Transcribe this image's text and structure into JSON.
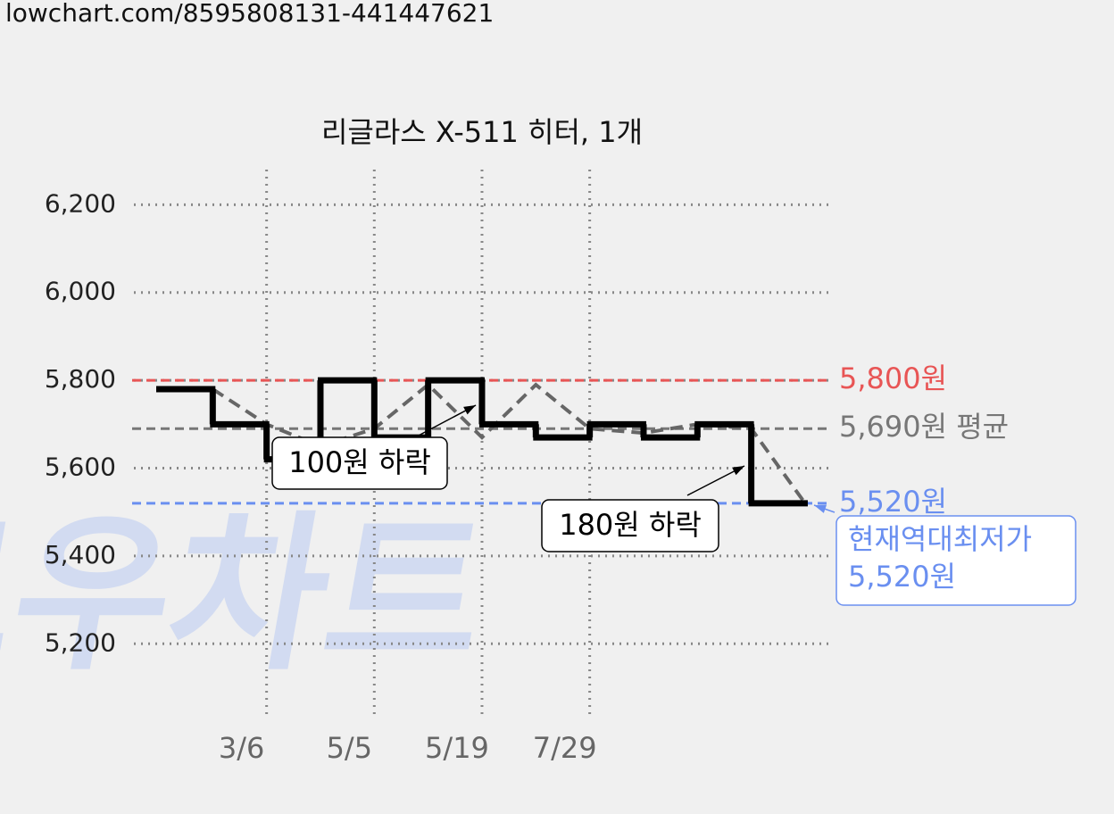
{
  "source": "lowchart.com/8595808131-441447621",
  "watermark": "로우차트",
  "chart_data": {
    "type": "step",
    "title": "리글라스 X-511 히터, 1개",
    "categories": [
      null,
      null,
      "3/6",
      null,
      "5/5",
      null,
      "5/19",
      null,
      "7/29",
      null,
      null,
      null
    ],
    "series": [
      {
        "color": "#000000",
        "values": [
          5780,
          5700,
          5620,
          5800,
          5670,
          5800,
          5700,
          5670,
          5700,
          5670,
          5700,
          5520
        ]
      },
      {
        "color": "#666666",
        "values": [
          5780,
          5700,
          5650,
          5690,
          5790,
          5670,
          5790,
          5690,
          5680,
          5700,
          5690,
          5520
        ]
      }
    ],
    "ylim": [
      5040,
      6280
    ],
    "yticks": [
      {
        "value": 5200,
        "label": "5,200"
      },
      {
        "value": 5400,
        "label": "5,400"
      },
      {
        "value": 5600,
        "label": "5,600"
      },
      {
        "value": 5800,
        "label": "5,800"
      },
      {
        "value": 6000,
        "label": "6,000"
      },
      {
        "value": 6200,
        "label": "6,200"
      }
    ],
    "grid": true,
    "reference_lines": [
      {
        "value": 5800,
        "label": "5,800원",
        "color": "#e85555"
      },
      {
        "value": 5690,
        "label": "5,690원 평균",
        "color": "#777777"
      },
      {
        "value": 5520,
        "label": "5,520원",
        "color": "#6a8ff0"
      }
    ],
    "annotations": [
      {
        "text": "100원 하락"
      },
      {
        "text": "180원 하락"
      },
      {
        "lines": [
          "현재역대최저가",
          "5,520원"
        ],
        "color": "#6a8ff0"
      }
    ]
  }
}
